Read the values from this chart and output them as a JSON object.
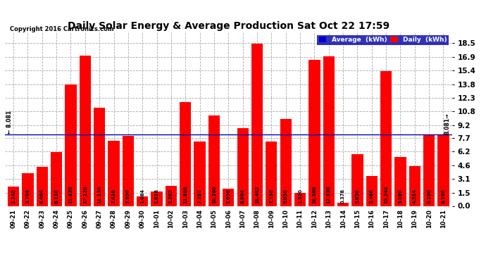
{
  "title": "Daily Solar Energy & Average Production Sat Oct 22 17:59",
  "copyright": "Copyright 2016 Cartronics.com",
  "categories": [
    "09-21",
    "09-22",
    "09-23",
    "09-24",
    "09-25",
    "09-26",
    "09-27",
    "09-28",
    "09-29",
    "09-30",
    "10-01",
    "10-02",
    "10-03",
    "10-04",
    "10-05",
    "10-06",
    "10-07",
    "10-08",
    "10-09",
    "10-10",
    "10-11",
    "10-12",
    "10-13",
    "10-14",
    "10-15",
    "10-16",
    "10-17",
    "10-18",
    "10-19",
    "10-20",
    "10-21"
  ],
  "values": [
    2.24,
    3.704,
    4.464,
    6.136,
    13.828,
    17.12,
    11.124,
    7.436,
    7.956,
    1.084,
    1.616,
    2.282,
    11.808,
    7.282,
    10.26,
    1.956,
    8.864,
    18.462,
    7.338,
    9.858,
    1.52,
    16.566,
    17.03,
    0.378,
    5.858,
    3.368,
    15.344,
    5.58,
    4.514,
    8.106,
    8.106
  ],
  "average": 8.081,
  "bar_color": "#ff0000",
  "average_line_color": "#0000bb",
  "grid_color": "#aaaaaa",
  "yticks": [
    0.0,
    1.5,
    3.1,
    4.6,
    6.2,
    7.7,
    9.2,
    10.8,
    12.3,
    13.8,
    15.4,
    16.9,
    18.5
  ],
  "ylim": [
    0,
    19.8
  ],
  "legend_avg_color": "#0000cc",
  "legend_daily_color": "#ff0000",
  "fig_bg_color": "#ffffff"
}
